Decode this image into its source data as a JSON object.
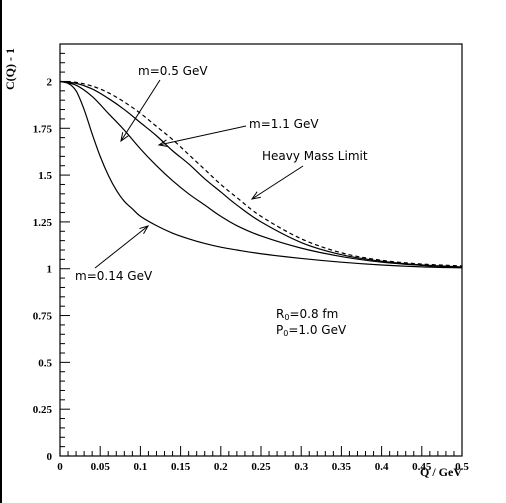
{
  "chart_data": {
    "type": "line",
    "title": "",
    "xlabel": "Q / GeV",
    "ylabel": "C(Q) - 1",
    "xlim": [
      0,
      0.5
    ],
    "ylim": [
      0,
      2.2
    ],
    "x_ticks": [
      "0",
      "0.05",
      "0.1",
      "0.15",
      "0.2",
      "0.25",
      "0.3",
      "0.35",
      "0.4",
      "0.45",
      "0.5"
    ],
    "y_ticks": [
      "0",
      "0.25",
      "0.5",
      "0.75",
      "1",
      "1.25",
      "1.5",
      "1.75",
      "2"
    ],
    "grid": false,
    "series": [
      {
        "name": "m=0.14 GeV",
        "style": "solid",
        "points": [
          [
            0,
            2.0
          ],
          [
            0.01,
            1.99
          ],
          [
            0.02,
            1.95
          ],
          [
            0.03,
            1.85
          ],
          [
            0.04,
            1.72
          ],
          [
            0.05,
            1.6
          ],
          [
            0.06,
            1.5
          ],
          [
            0.07,
            1.42
          ],
          [
            0.08,
            1.36
          ],
          [
            0.09,
            1.32
          ],
          [
            0.1,
            1.28
          ],
          [
            0.12,
            1.23
          ],
          [
            0.14,
            1.19
          ],
          [
            0.16,
            1.16
          ],
          [
            0.18,
            1.135
          ],
          [
            0.2,
            1.115
          ],
          [
            0.22,
            1.1
          ],
          [
            0.25,
            1.08
          ],
          [
            0.3,
            1.055
          ],
          [
            0.35,
            1.035
          ],
          [
            0.4,
            1.02
          ],
          [
            0.45,
            1.01
          ],
          [
            0.5,
            1.005
          ]
        ]
      },
      {
        "name": "m=0.5 GeV",
        "style": "solid",
        "points": [
          [
            0,
            2.0
          ],
          [
            0.02,
            1.98
          ],
          [
            0.04,
            1.92
          ],
          [
            0.06,
            1.83
          ],
          [
            0.08,
            1.74
          ],
          [
            0.1,
            1.64
          ],
          [
            0.12,
            1.55
          ],
          [
            0.14,
            1.47
          ],
          [
            0.16,
            1.4
          ],
          [
            0.18,
            1.34
          ],
          [
            0.2,
            1.28
          ],
          [
            0.22,
            1.23
          ],
          [
            0.25,
            1.175
          ],
          [
            0.3,
            1.11
          ],
          [
            0.35,
            1.065
          ],
          [
            0.4,
            1.035
          ],
          [
            0.45,
            1.018
          ],
          [
            0.5,
            1.008
          ]
        ]
      },
      {
        "name": "m=1.1 GeV",
        "style": "solid",
        "points": [
          [
            0,
            2.0
          ],
          [
            0.02,
            1.99
          ],
          [
            0.04,
            1.96
          ],
          [
            0.06,
            1.91
          ],
          [
            0.08,
            1.85
          ],
          [
            0.1,
            1.78
          ],
          [
            0.12,
            1.71
          ],
          [
            0.14,
            1.63
          ],
          [
            0.16,
            1.56
          ],
          [
            0.18,
            1.48
          ],
          [
            0.2,
            1.41
          ],
          [
            0.22,
            1.34
          ],
          [
            0.25,
            1.25
          ],
          [
            0.3,
            1.14
          ],
          [
            0.35,
            1.075
          ],
          [
            0.4,
            1.04
          ],
          [
            0.45,
            1.02
          ],
          [
            0.5,
            1.01
          ]
        ]
      },
      {
        "name": "Heavy Mass Limit",
        "style": "dashed",
        "points": [
          [
            0,
            2.0
          ],
          [
            0.02,
            1.995
          ],
          [
            0.04,
            1.975
          ],
          [
            0.06,
            1.94
          ],
          [
            0.08,
            1.89
          ],
          [
            0.1,
            1.83
          ],
          [
            0.12,
            1.76
          ],
          [
            0.14,
            1.69
          ],
          [
            0.16,
            1.61
          ],
          [
            0.18,
            1.53
          ],
          [
            0.2,
            1.45
          ],
          [
            0.22,
            1.38
          ],
          [
            0.25,
            1.28
          ],
          [
            0.3,
            1.16
          ],
          [
            0.35,
            1.085
          ],
          [
            0.4,
            1.045
          ],
          [
            0.45,
            1.025
          ],
          [
            0.5,
            1.015
          ]
        ]
      }
    ],
    "annotations": [
      {
        "text": "m=0.5 GeV",
        "arrow_to": [
          0.08,
          1.72
        ]
      },
      {
        "text": "m=1.1 GeV",
        "arrow_to": [
          0.12,
          1.71
        ]
      },
      {
        "text": "Heavy Mass Limit",
        "arrow_to": [
          0.24,
          1.4
        ]
      },
      {
        "text": "m=0.14 GeV",
        "arrow_to": [
          0.11,
          1.27
        ]
      }
    ],
    "params": {
      "r_main": "R",
      "r_sub": "0",
      "r_val": "=0.8 fm",
      "p_main": "P",
      "p_sub": "0",
      "p_val": "=1.0 GeV"
    }
  }
}
